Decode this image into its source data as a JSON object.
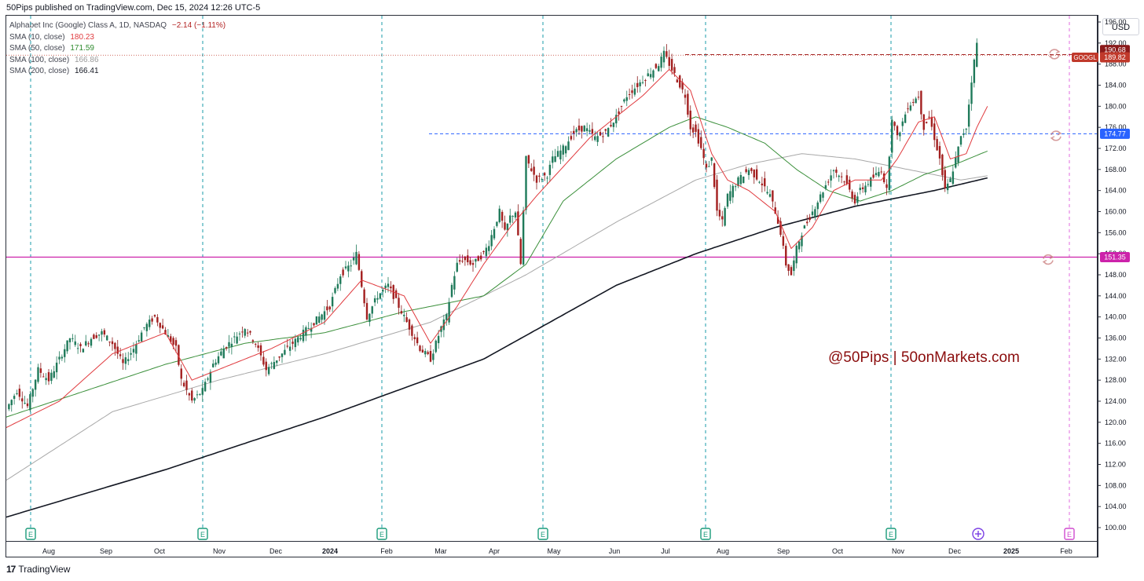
{
  "header": {
    "publish_line": "50Pips published on TradingView.com, Dec 15, 2024 12:26 UTC-5",
    "currency": "USD"
  },
  "legend": {
    "symbol_line": "Alphabet Inc (Google) Class A, 1D, NASDAQ",
    "change": "−2.14 (−1.11%)",
    "items": [
      {
        "label": "SMA (10, close)",
        "value": "180.23",
        "color": "#e03a3e"
      },
      {
        "label": "SMA (50, close)",
        "value": "171.59",
        "color": "#2e8b2e"
      },
      {
        "label": "SMA (100, close)",
        "value": "166.86",
        "color": "#9a9a9a"
      },
      {
        "label": "SMA (200, close)",
        "value": "166.41",
        "color": "#131722"
      }
    ]
  },
  "footer": {
    "logo": "17",
    "brand": "TradingView"
  },
  "watermark": "@50Pips | 50onMarkets.com",
  "chart_data": {
    "type": "candlestick",
    "symbol": "GOOGL",
    "ylim": [
      98,
      200
    ],
    "y_ticks": [
      "196.00",
      "192.00",
      "188.00",
      "184.00",
      "180.00",
      "176.00",
      "172.00",
      "168.00",
      "164.00",
      "160.00",
      "156.00",
      "152.00",
      "148.00",
      "144.00",
      "140.00",
      "136.00",
      "132.00",
      "128.00",
      "124.00",
      "120.00",
      "116.00",
      "112.00",
      "108.00",
      "104.00",
      "100.00"
    ],
    "x_ticks": [
      "Aug",
      "Sep",
      "Oct",
      "Nov",
      "Dec",
      "2024",
      "Feb",
      "Mar",
      "Apr",
      "May",
      "Jun",
      "Jul",
      "Aug",
      "Sep",
      "Oct",
      "Nov",
      "Dec",
      "2025",
      "Feb"
    ],
    "price_labels": [
      {
        "text": "190.68",
        "color": "#8b1a1a"
      },
      {
        "text": "189.82",
        "color": "#c0392b"
      },
      {
        "text": "174.77",
        "color": "#2962ff"
      },
      {
        "text": "151.35",
        "color": "#cc22aa"
      }
    ],
    "ticker_label": "GOOGL",
    "horizontal_levels": [
      {
        "price": 151.35,
        "style": "solid",
        "color": "#cc22aa"
      },
      {
        "price": 174.77,
        "style": "dashed",
        "color": "#2962ff"
      },
      {
        "price": 189.82,
        "style": "dashed",
        "color": "#a52a2a"
      }
    ],
    "earnings_markers": [
      "E",
      "E",
      "E",
      "E",
      "E",
      "E",
      "E"
    ],
    "close_path": [
      [
        0,
        122.5
      ],
      [
        4,
        126
      ],
      [
        8,
        123
      ],
      [
        12,
        130
      ],
      [
        16,
        128
      ],
      [
        20,
        132
      ],
      [
        24,
        136
      ],
      [
        28,
        134
      ],
      [
        32,
        136
      ],
      [
        36,
        137
      ],
      [
        40,
        135
      ],
      [
        44,
        131
      ],
      [
        48,
        134
      ],
      [
        52,
        138
      ],
      [
        56,
        140
      ],
      [
        60,
        137
      ],
      [
        64,
        134
      ],
      [
        66,
        128
      ],
      [
        70,
        124
      ],
      [
        74,
        126
      ],
      [
        78,
        131
      ],
      [
        82,
        134
      ],
      [
        86,
        136
      ],
      [
        90,
        138
      ],
      [
        94,
        135
      ],
      [
        98,
        130
      ],
      [
        102,
        132
      ],
      [
        106,
        134
      ],
      [
        110,
        136
      ],
      [
        114,
        138
      ],
      [
        118,
        140
      ],
      [
        122,
        142
      ],
      [
        126,
        148
      ],
      [
        130,
        150
      ],
      [
        132,
        152
      ],
      [
        134,
        146
      ],
      [
        136,
        140
      ],
      [
        140,
        144
      ],
      [
        144,
        146
      ],
      [
        148,
        142
      ],
      [
        152,
        138
      ],
      [
        156,
        134
      ],
      [
        160,
        132
      ],
      [
        164,
        138
      ],
      [
        166,
        140
      ],
      [
        168,
        146
      ],
      [
        170,
        150
      ],
      [
        172,
        151
      ],
      [
        176,
        150
      ],
      [
        180,
        152
      ],
      [
        182,
        154
      ],
      [
        184,
        157
      ],
      [
        186,
        160
      ],
      [
        188,
        156
      ],
      [
        190,
        159
      ],
      [
        192,
        160
      ],
      [
        194,
        150
      ],
      [
        196,
        170
      ],
      [
        200,
        166
      ],
      [
        204,
        167
      ],
      [
        206,
        170
      ],
      [
        210,
        172
      ],
      [
        214,
        175
      ],
      [
        218,
        176
      ],
      [
        222,
        174
      ],
      [
        226,
        175
      ],
      [
        230,
        178
      ],
      [
        234,
        182
      ],
      [
        238,
        184
      ],
      [
        242,
        186
      ],
      [
        246,
        188
      ],
      [
        248,
        190
      ],
      [
        250,
        188
      ],
      [
        252,
        186
      ],
      [
        254,
        184
      ],
      [
        256,
        182
      ],
      [
        258,
        176
      ],
      [
        260,
        175
      ],
      [
        262,
        172
      ],
      [
        264,
        168
      ],
      [
        266,
        170
      ],
      [
        268,
        160
      ],
      [
        270,
        158
      ],
      [
        272,
        163
      ],
      [
        276,
        166
      ],
      [
        280,
        168
      ],
      [
        284,
        166
      ],
      [
        288,
        163
      ],
      [
        290,
        160
      ],
      [
        292,
        156
      ],
      [
        294,
        150
      ],
      [
        296,
        148
      ],
      [
        298,
        153
      ],
      [
        300,
        156
      ],
      [
        304,
        160
      ],
      [
        308,
        164
      ],
      [
        312,
        168
      ],
      [
        316,
        166
      ],
      [
        320,
        162
      ],
      [
        322,
        164
      ],
      [
        326,
        166
      ],
      [
        330,
        168
      ],
      [
        332,
        164
      ],
      [
        334,
        178
      ],
      [
        336,
        174
      ],
      [
        340,
        180
      ],
      [
        344,
        182
      ],
      [
        346,
        176
      ],
      [
        348,
        178
      ],
      [
        350,
        174
      ],
      [
        352,
        170
      ],
      [
        354,
        164
      ],
      [
        356,
        166
      ],
      [
        358,
        170
      ],
      [
        360,
        174
      ],
      [
        362,
        176
      ],
      [
        364,
        185
      ],
      [
        366,
        192
      ],
      [
        368,
        191
      ]
    ],
    "sma10": [
      [
        0,
        119
      ],
      [
        20,
        124
      ],
      [
        40,
        133
      ],
      [
        60,
        137
      ],
      [
        70,
        128
      ],
      [
        80,
        130
      ],
      [
        100,
        134
      ],
      [
        120,
        139
      ],
      [
        134,
        147
      ],
      [
        150,
        144
      ],
      [
        160,
        135
      ],
      [
        170,
        142
      ],
      [
        180,
        150
      ],
      [
        190,
        157
      ],
      [
        200,
        163
      ],
      [
        220,
        174
      ],
      [
        240,
        182
      ],
      [
        250,
        187
      ],
      [
        258,
        183
      ],
      [
        266,
        171
      ],
      [
        272,
        166
      ],
      [
        280,
        164
      ],
      [
        290,
        160
      ],
      [
        296,
        153
      ],
      [
        304,
        157
      ],
      [
        312,
        164
      ],
      [
        320,
        166
      ],
      [
        330,
        166
      ],
      [
        336,
        170
      ],
      [
        344,
        177
      ],
      [
        350,
        178
      ],
      [
        356,
        170
      ],
      [
        362,
        171
      ],
      [
        366,
        176
      ],
      [
        370,
        180
      ]
    ],
    "sma50": [
      [
        0,
        121
      ],
      [
        30,
        126
      ],
      [
        60,
        131
      ],
      [
        90,
        135
      ],
      [
        120,
        137
      ],
      [
        150,
        141
      ],
      [
        180,
        144
      ],
      [
        196,
        150
      ],
      [
        210,
        162
      ],
      [
        230,
        170
      ],
      [
        250,
        176
      ],
      [
        260,
        178
      ],
      [
        272,
        176
      ],
      [
        286,
        173
      ],
      [
        298,
        168
      ],
      [
        310,
        164
      ],
      [
        322,
        162
      ],
      [
        334,
        164
      ],
      [
        346,
        167
      ],
      [
        358,
        169
      ],
      [
        370,
        171.5
      ]
    ],
    "sma100": [
      [
        0,
        109
      ],
      [
        40,
        122
      ],
      [
        80,
        128
      ],
      [
        120,
        133
      ],
      [
        160,
        139
      ],
      [
        196,
        148
      ],
      [
        230,
        158
      ],
      [
        260,
        166
      ],
      [
        280,
        169
      ],
      [
        300,
        171
      ],
      [
        320,
        170
      ],
      [
        340,
        168
      ],
      [
        360,
        166
      ],
      [
        370,
        166.8
      ]
    ],
    "sma200": [
      [
        0,
        102
      ],
      [
        60,
        111
      ],
      [
        120,
        121
      ],
      [
        180,
        132
      ],
      [
        230,
        146
      ],
      [
        260,
        152
      ],
      [
        290,
        157
      ],
      [
        320,
        161
      ],
      [
        350,
        164
      ],
      [
        370,
        166.4
      ]
    ]
  }
}
